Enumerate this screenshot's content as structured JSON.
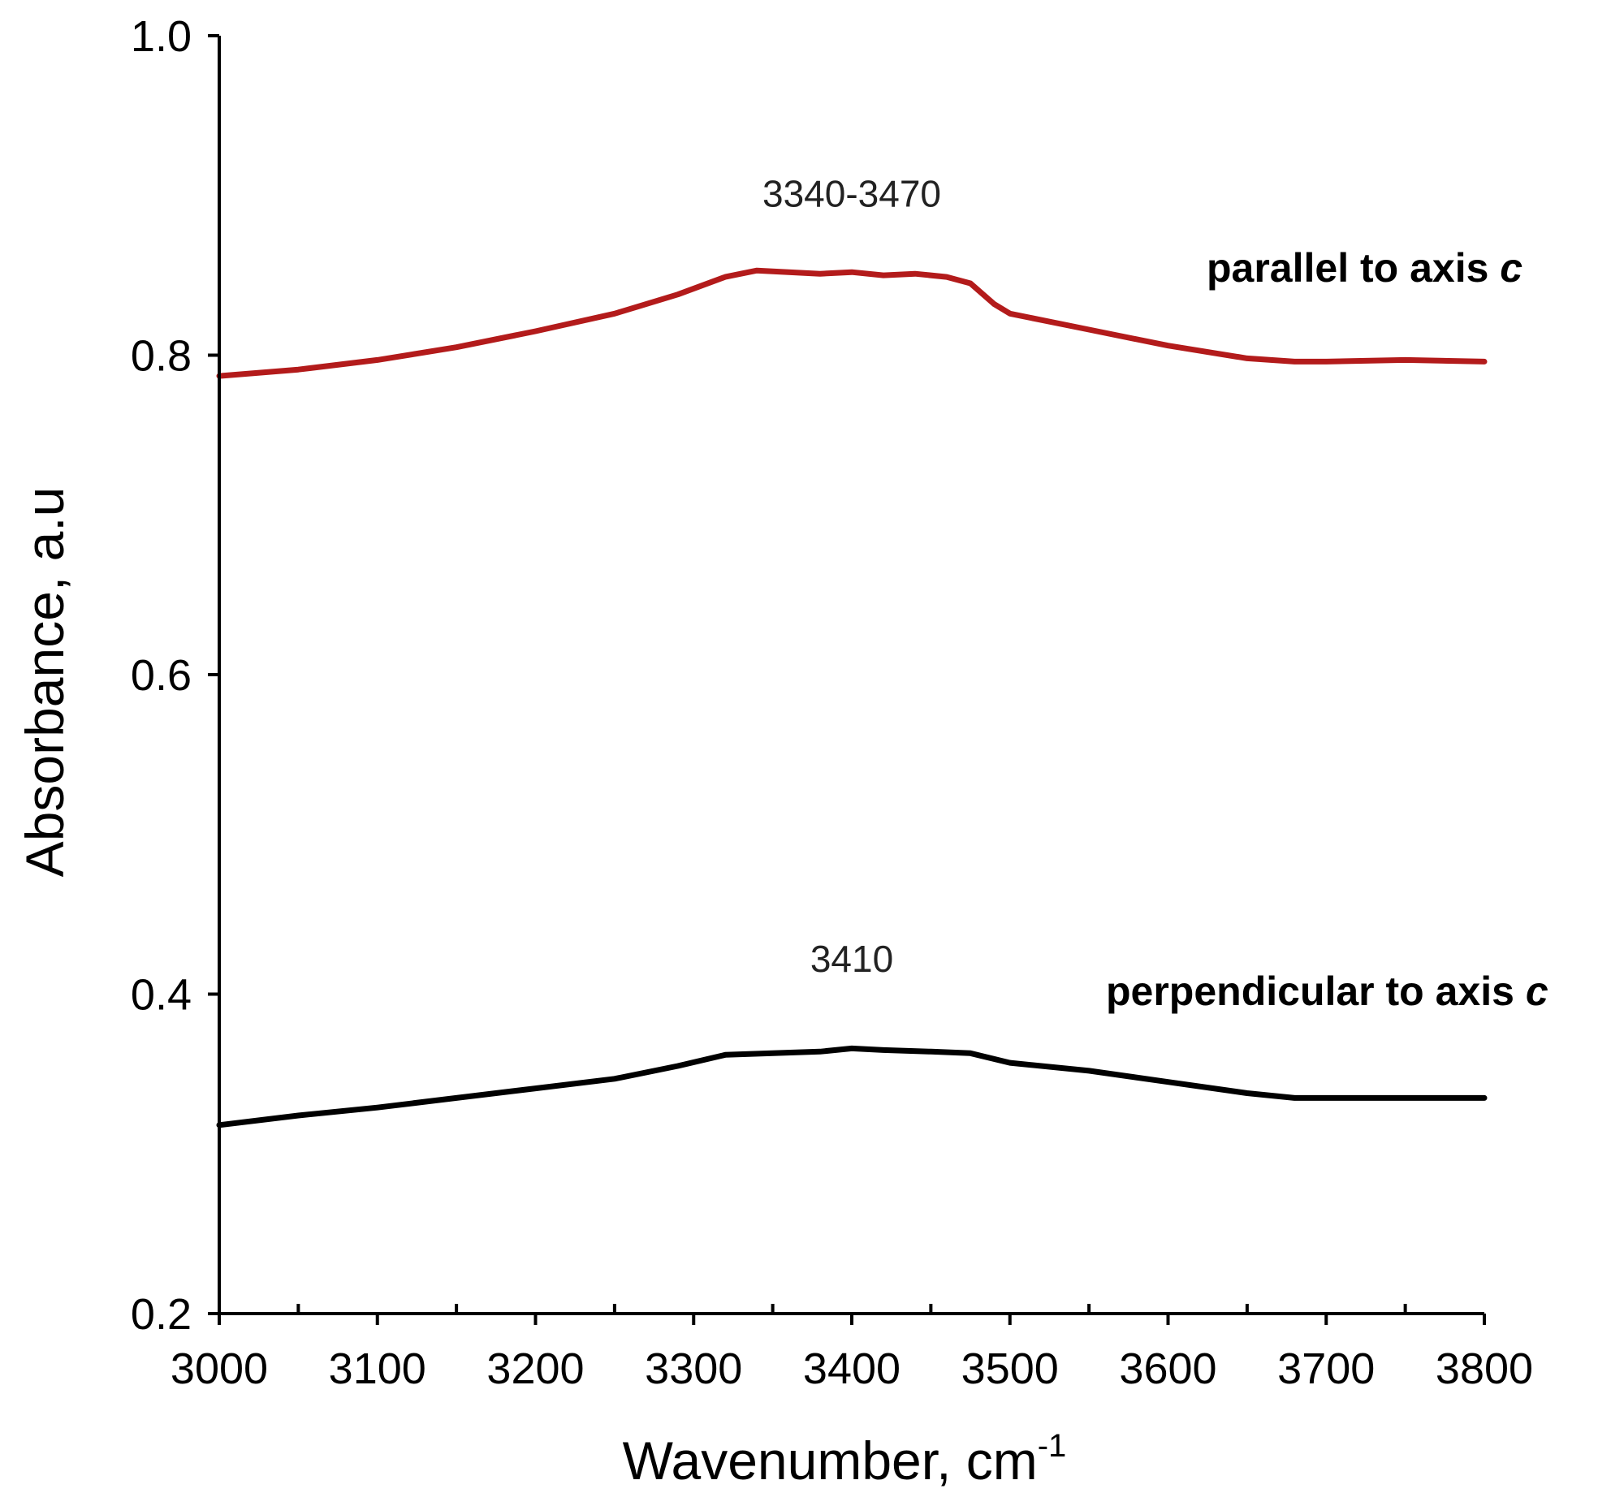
{
  "chart_data": {
    "type": "line",
    "title": "",
    "xlabel": "Wavenumber, cm",
    "xlabel_sup": "-1",
    "ylabel": "Absorbance, a.u",
    "xlim": [
      3000,
      3800
    ],
    "ylim": [
      0.2,
      1.0
    ],
    "x_ticks": [
      "3000",
      "3100",
      "3200",
      "3300",
      "3400",
      "3500",
      "3600",
      "3700",
      "3800"
    ],
    "y_ticks": [
      "0.2",
      "0.4",
      "0.6",
      "0.8",
      "1.0"
    ],
    "grid": false,
    "series": [
      {
        "name": "parallel to axis c",
        "label_text": "parallel to axis ",
        "label_italic": "c",
        "color": "#b31b1b",
        "x": [
          3000,
          3050,
          3100,
          3150,
          3200,
          3250,
          3290,
          3320,
          3340,
          3360,
          3380,
          3400,
          3420,
          3440,
          3460,
          3475,
          3490,
          3500,
          3520,
          3550,
          3600,
          3650,
          3680,
          3700,
          3750,
          3800
        ],
        "y": [
          0.787,
          0.791,
          0.797,
          0.805,
          0.815,
          0.826,
          0.838,
          0.849,
          0.853,
          0.852,
          0.851,
          0.852,
          0.85,
          0.851,
          0.849,
          0.845,
          0.832,
          0.826,
          0.822,
          0.816,
          0.806,
          0.798,
          0.796,
          0.796,
          0.797,
          0.796
        ],
        "annotation": "3340-3470",
        "annotation_x": 3400,
        "annotation_y": 0.893
      },
      {
        "name": "perpendicular to axis c",
        "label_text": "perpendicular to axis ",
        "label_italic": "c",
        "color": "#000000",
        "x": [
          3000,
          3050,
          3100,
          3150,
          3200,
          3250,
          3290,
          3320,
          3350,
          3380,
          3400,
          3420,
          3450,
          3475,
          3500,
          3550,
          3600,
          3650,
          3680,
          3700,
          3750,
          3800
        ],
        "y": [
          0.318,
          0.324,
          0.329,
          0.335,
          0.341,
          0.347,
          0.355,
          0.362,
          0.363,
          0.364,
          0.366,
          0.365,
          0.364,
          0.363,
          0.357,
          0.352,
          0.345,
          0.338,
          0.335,
          0.335,
          0.335,
          0.335
        ],
        "annotation": "3410",
        "annotation_x": 3400,
        "annotation_y": 0.414
      }
    ]
  }
}
